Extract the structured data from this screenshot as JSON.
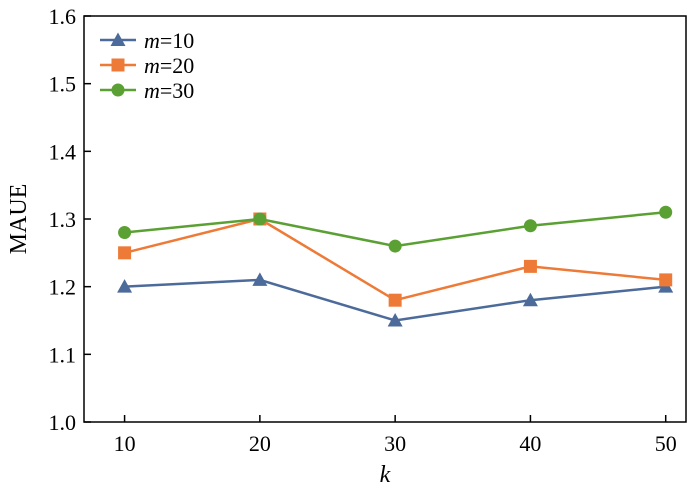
{
  "chart_data": {
    "type": "line",
    "title": "",
    "xlabel": "k",
    "ylabel": "MAUE",
    "x": [
      10,
      20,
      30,
      40,
      50
    ],
    "xlim": [
      7,
      51.5
    ],
    "ylim": [
      1.0,
      1.6
    ],
    "xticks": [
      "10",
      "20",
      "30",
      "40",
      "50"
    ],
    "yticks": [
      "1.0",
      "1.1",
      "1.2",
      "1.3",
      "1.4",
      "1.5",
      "1.6"
    ],
    "legend_position": "top-left",
    "grid": false,
    "series": [
      {
        "name": "m=10",
        "name_italic": "m",
        "name_rest": "=10",
        "marker": "triangle",
        "color": "#4c6b9a",
        "values": [
          1.2,
          1.21,
          1.15,
          1.18,
          1.2
        ]
      },
      {
        "name": "m=20",
        "name_italic": "m",
        "name_rest": "=20",
        "marker": "square",
        "color": "#ee7a37",
        "values": [
          1.25,
          1.3,
          1.18,
          1.23,
          1.21
        ]
      },
      {
        "name": "m=30",
        "name_italic": "m",
        "name_rest": "=30",
        "marker": "circle",
        "color": "#5aa032",
        "values": [
          1.28,
          1.3,
          1.26,
          1.29,
          1.31
        ]
      }
    ]
  }
}
